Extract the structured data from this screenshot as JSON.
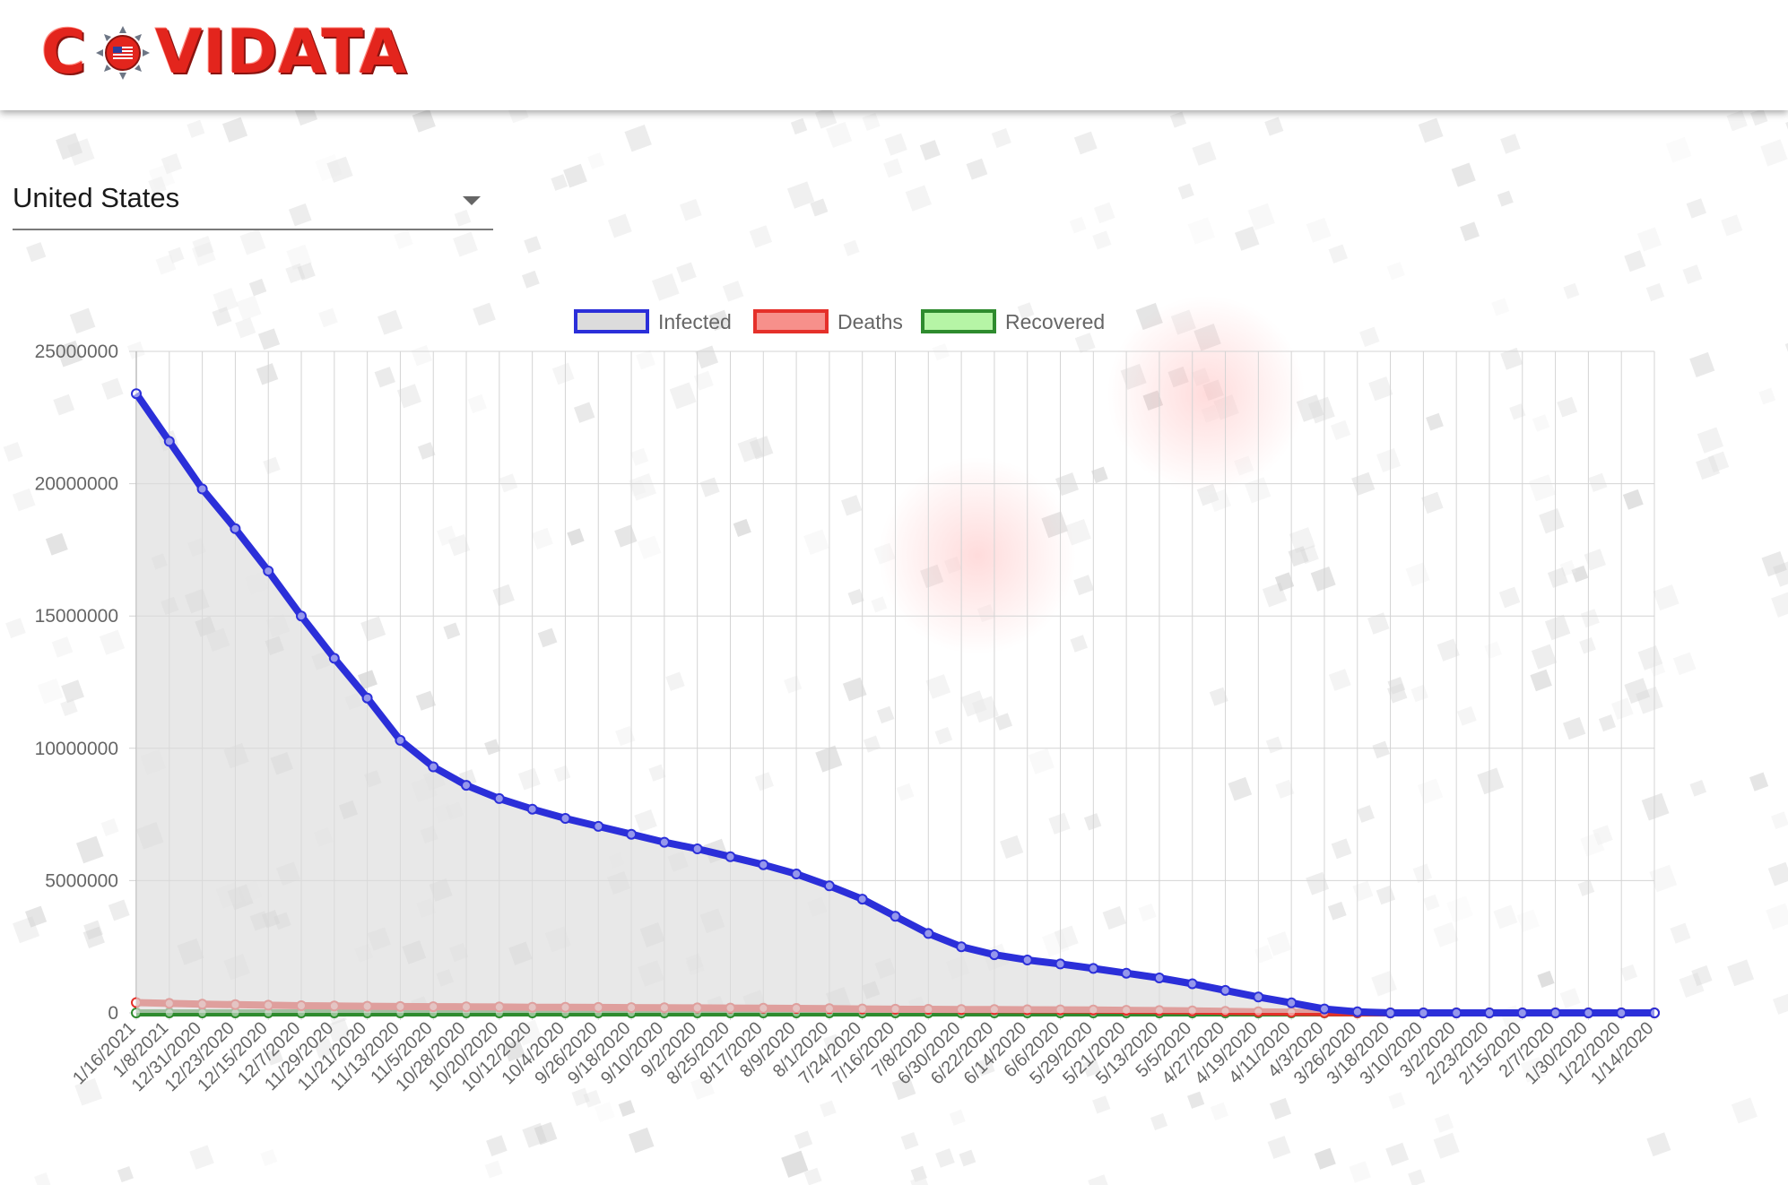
{
  "header": {
    "logo_text_left": "C",
    "logo_text_right": "VIDATA",
    "logo_icon": "virus-flag-icon"
  },
  "country_select": {
    "value": "United States",
    "icon": "caret-down-icon"
  },
  "colors": {
    "infected_line": "#2b2fd9",
    "infected_fill": "#dcdcdc",
    "deaths_line": "#e5302a",
    "deaths_fill": "#f7908b",
    "recovered_line": "#2e8b2e",
    "recovered_fill": "#b6f5a6",
    "logo_red": "#e3251d"
  },
  "chart_data": {
    "type": "line",
    "title": "",
    "xlabel": "",
    "ylabel": "",
    "ylim": [
      0,
      25000000
    ],
    "yticks": [
      "25000000",
      "20000000",
      "15000000",
      "10000000",
      "5000000",
      "0"
    ],
    "grid": true,
    "legend_position": "top",
    "categories": [
      "1/16/2021",
      "1/8/2021",
      "12/31/2020",
      "12/23/2020",
      "12/15/2020",
      "12/7/2020",
      "11/29/2020",
      "11/21/2020",
      "11/13/2020",
      "11/5/2020",
      "10/28/2020",
      "10/20/2020",
      "10/12/2020",
      "10/4/2020",
      "9/26/2020",
      "9/18/2020",
      "9/10/2020",
      "9/2/2020",
      "8/25/2020",
      "8/17/2020",
      "8/9/2020",
      "8/1/2020",
      "7/24/2020",
      "7/16/2020",
      "7/8/2020",
      "6/30/2020",
      "6/22/2020",
      "6/14/2020",
      "6/6/2020",
      "5/29/2020",
      "5/21/2020",
      "5/13/2020",
      "5/5/2020",
      "4/27/2020",
      "4/19/2020",
      "4/11/2020",
      "4/3/2020",
      "3/26/2020",
      "3/18/2020",
      "3/10/2020",
      "3/2/2020",
      "2/23/2020",
      "2/15/2020",
      "2/7/2020",
      "1/30/2020",
      "1/22/2020",
      "1/14/2020"
    ],
    "series": [
      {
        "name": "Infected",
        "values": [
          23400000,
          21600000,
          19800000,
          18300000,
          16700000,
          15000000,
          13400000,
          11900000,
          10300000,
          9300000,
          8600000,
          8100000,
          7700000,
          7350000,
          7050000,
          6750000,
          6450000,
          6200000,
          5900000,
          5600000,
          5250000,
          4800000,
          4300000,
          3650000,
          3000000,
          2500000,
          2200000,
          2000000,
          1850000,
          1680000,
          1500000,
          1320000,
          1100000,
          850000,
          600000,
          380000,
          150000,
          40000,
          0,
          0,
          0,
          0,
          0,
          0,
          0,
          0,
          0
        ]
      },
      {
        "name": "Deaths",
        "values": [
          390000,
          360000,
          330000,
          310000,
          290000,
          270000,
          260000,
          250000,
          240000,
          235000,
          230000,
          222000,
          215000,
          210000,
          205000,
          200000,
          195000,
          190000,
          182000,
          175000,
          168000,
          160000,
          150000,
          140000,
          135000,
          130000,
          125000,
          120000,
          115000,
          108000,
          98000,
          88000,
          75000,
          58000,
          42000,
          24000,
          9000,
          2000,
          0,
          0,
          0,
          0,
          0,
          0,
          0,
          0,
          0
        ]
      },
      {
        "name": "Recovered",
        "values": [
          0,
          0,
          0,
          0,
          0,
          0,
          0,
          0,
          0,
          0,
          0,
          0,
          0,
          0,
          0,
          0,
          0,
          0,
          0,
          0,
          0,
          0,
          0,
          0,
          0,
          0,
          0,
          0,
          0,
          0,
          0,
          0,
          0,
          0,
          0,
          0,
          0,
          0,
          0,
          0,
          0,
          0,
          0,
          0,
          0,
          0,
          0
        ]
      }
    ]
  }
}
